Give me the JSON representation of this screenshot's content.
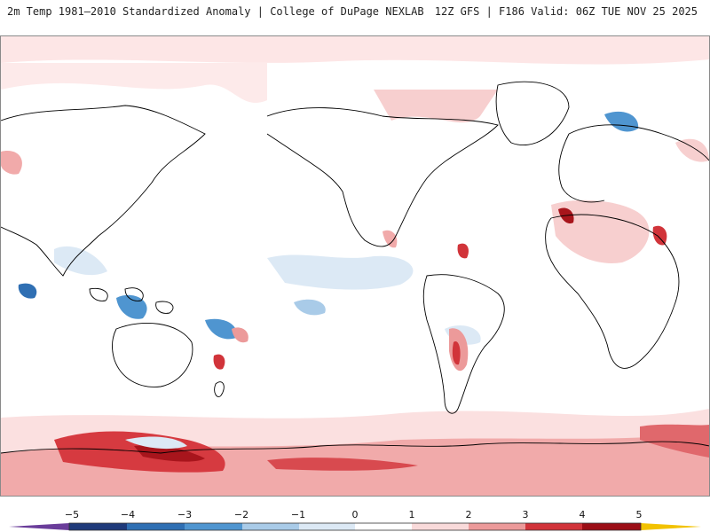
{
  "header": {
    "title": "2m Temp 1981–2010 Standardized Anomaly | College of DuPage NEXLAB",
    "model_info": "12Z GFS | F186 Valid: 06Z TUE NOV 25 2025"
  },
  "map": {
    "projection": "equirectangular, Pacific-centered",
    "coastline_color": "#000000",
    "background_color": "#ffffff"
  },
  "legend": {
    "ticks": [
      "−5",
      "−4",
      "−3",
      "−2",
      "−1",
      "0",
      "1",
      "2",
      "3",
      "4",
      "5"
    ],
    "colors": {
      "lt_-5": "#6a3d9a",
      "-5_-4": "#1f3a7a",
      "-4_-3": "#2f6fb3",
      "-3_-2": "#4f95d0",
      "-2_-1": "#a9cbe8",
      "-1_0": "#dce9f5",
      "0_1": "#ffffff",
      "1_2": "#f9dada",
      "2_3": "#ec9a9a",
      "3_4": "#d1343a",
      "4_5": "#9b0e16",
      "gt_5": "#f2c200"
    }
  }
}
